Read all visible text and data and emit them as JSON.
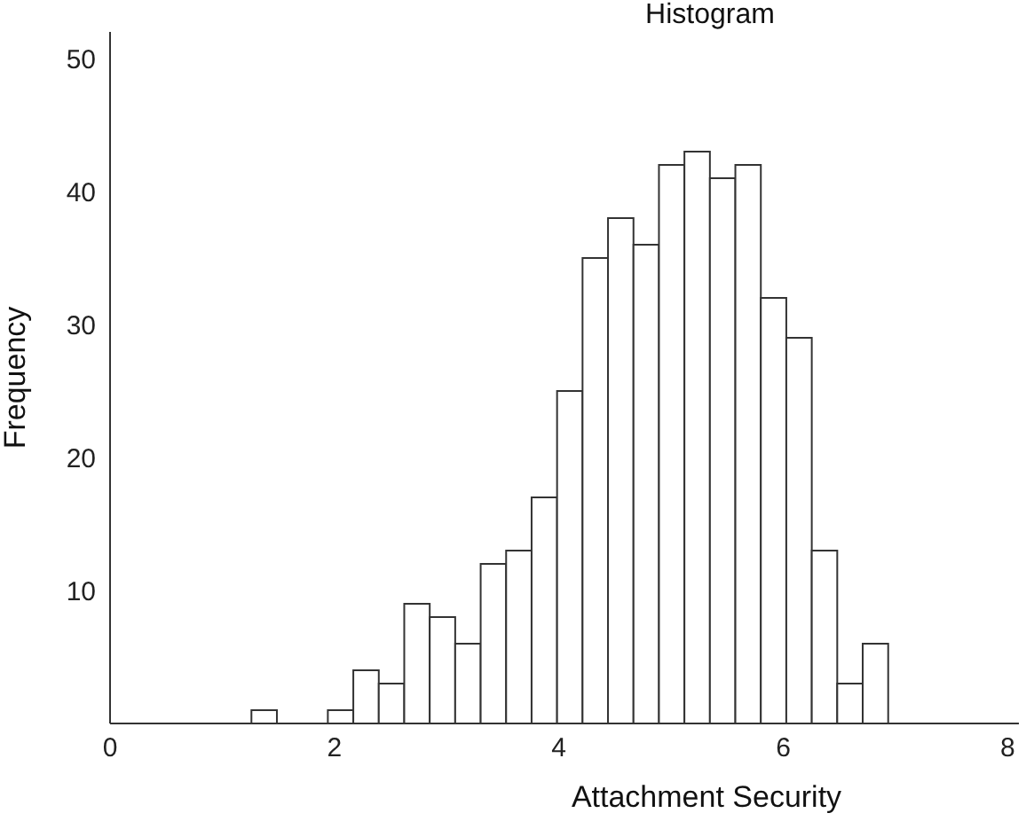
{
  "chart_data": {
    "type": "histogram",
    "title": "Histogram",
    "xlabel": "Attachment Security",
    "ylabel": "Frequency",
    "bins": [
      1.26,
      1.487,
      1.714,
      1.941,
      2.168,
      2.395,
      2.622,
      2.849,
      3.076,
      3.303,
      3.53,
      3.757,
      3.984,
      4.211,
      4.438,
      4.665,
      4.892,
      5.119,
      5.346,
      5.573,
      5.8,
      6.027,
      6.254,
      6.481,
      6.708,
      6.935
    ],
    "values": [
      1,
      0,
      0,
      1,
      4,
      3,
      9,
      8,
      6,
      12,
      13,
      17,
      25,
      35,
      38,
      36,
      42,
      43,
      41,
      42,
      32,
      29,
      13,
      3,
      6
    ],
    "color": "#ffffff",
    "xlim": [
      0,
      8.1
    ],
    "xticks": [
      0,
      2,
      4,
      6,
      8
    ],
    "ylim": [
      0,
      52
    ],
    "yticks": [
      10,
      20,
      30,
      40,
      50
    ],
    "grid": false
  }
}
